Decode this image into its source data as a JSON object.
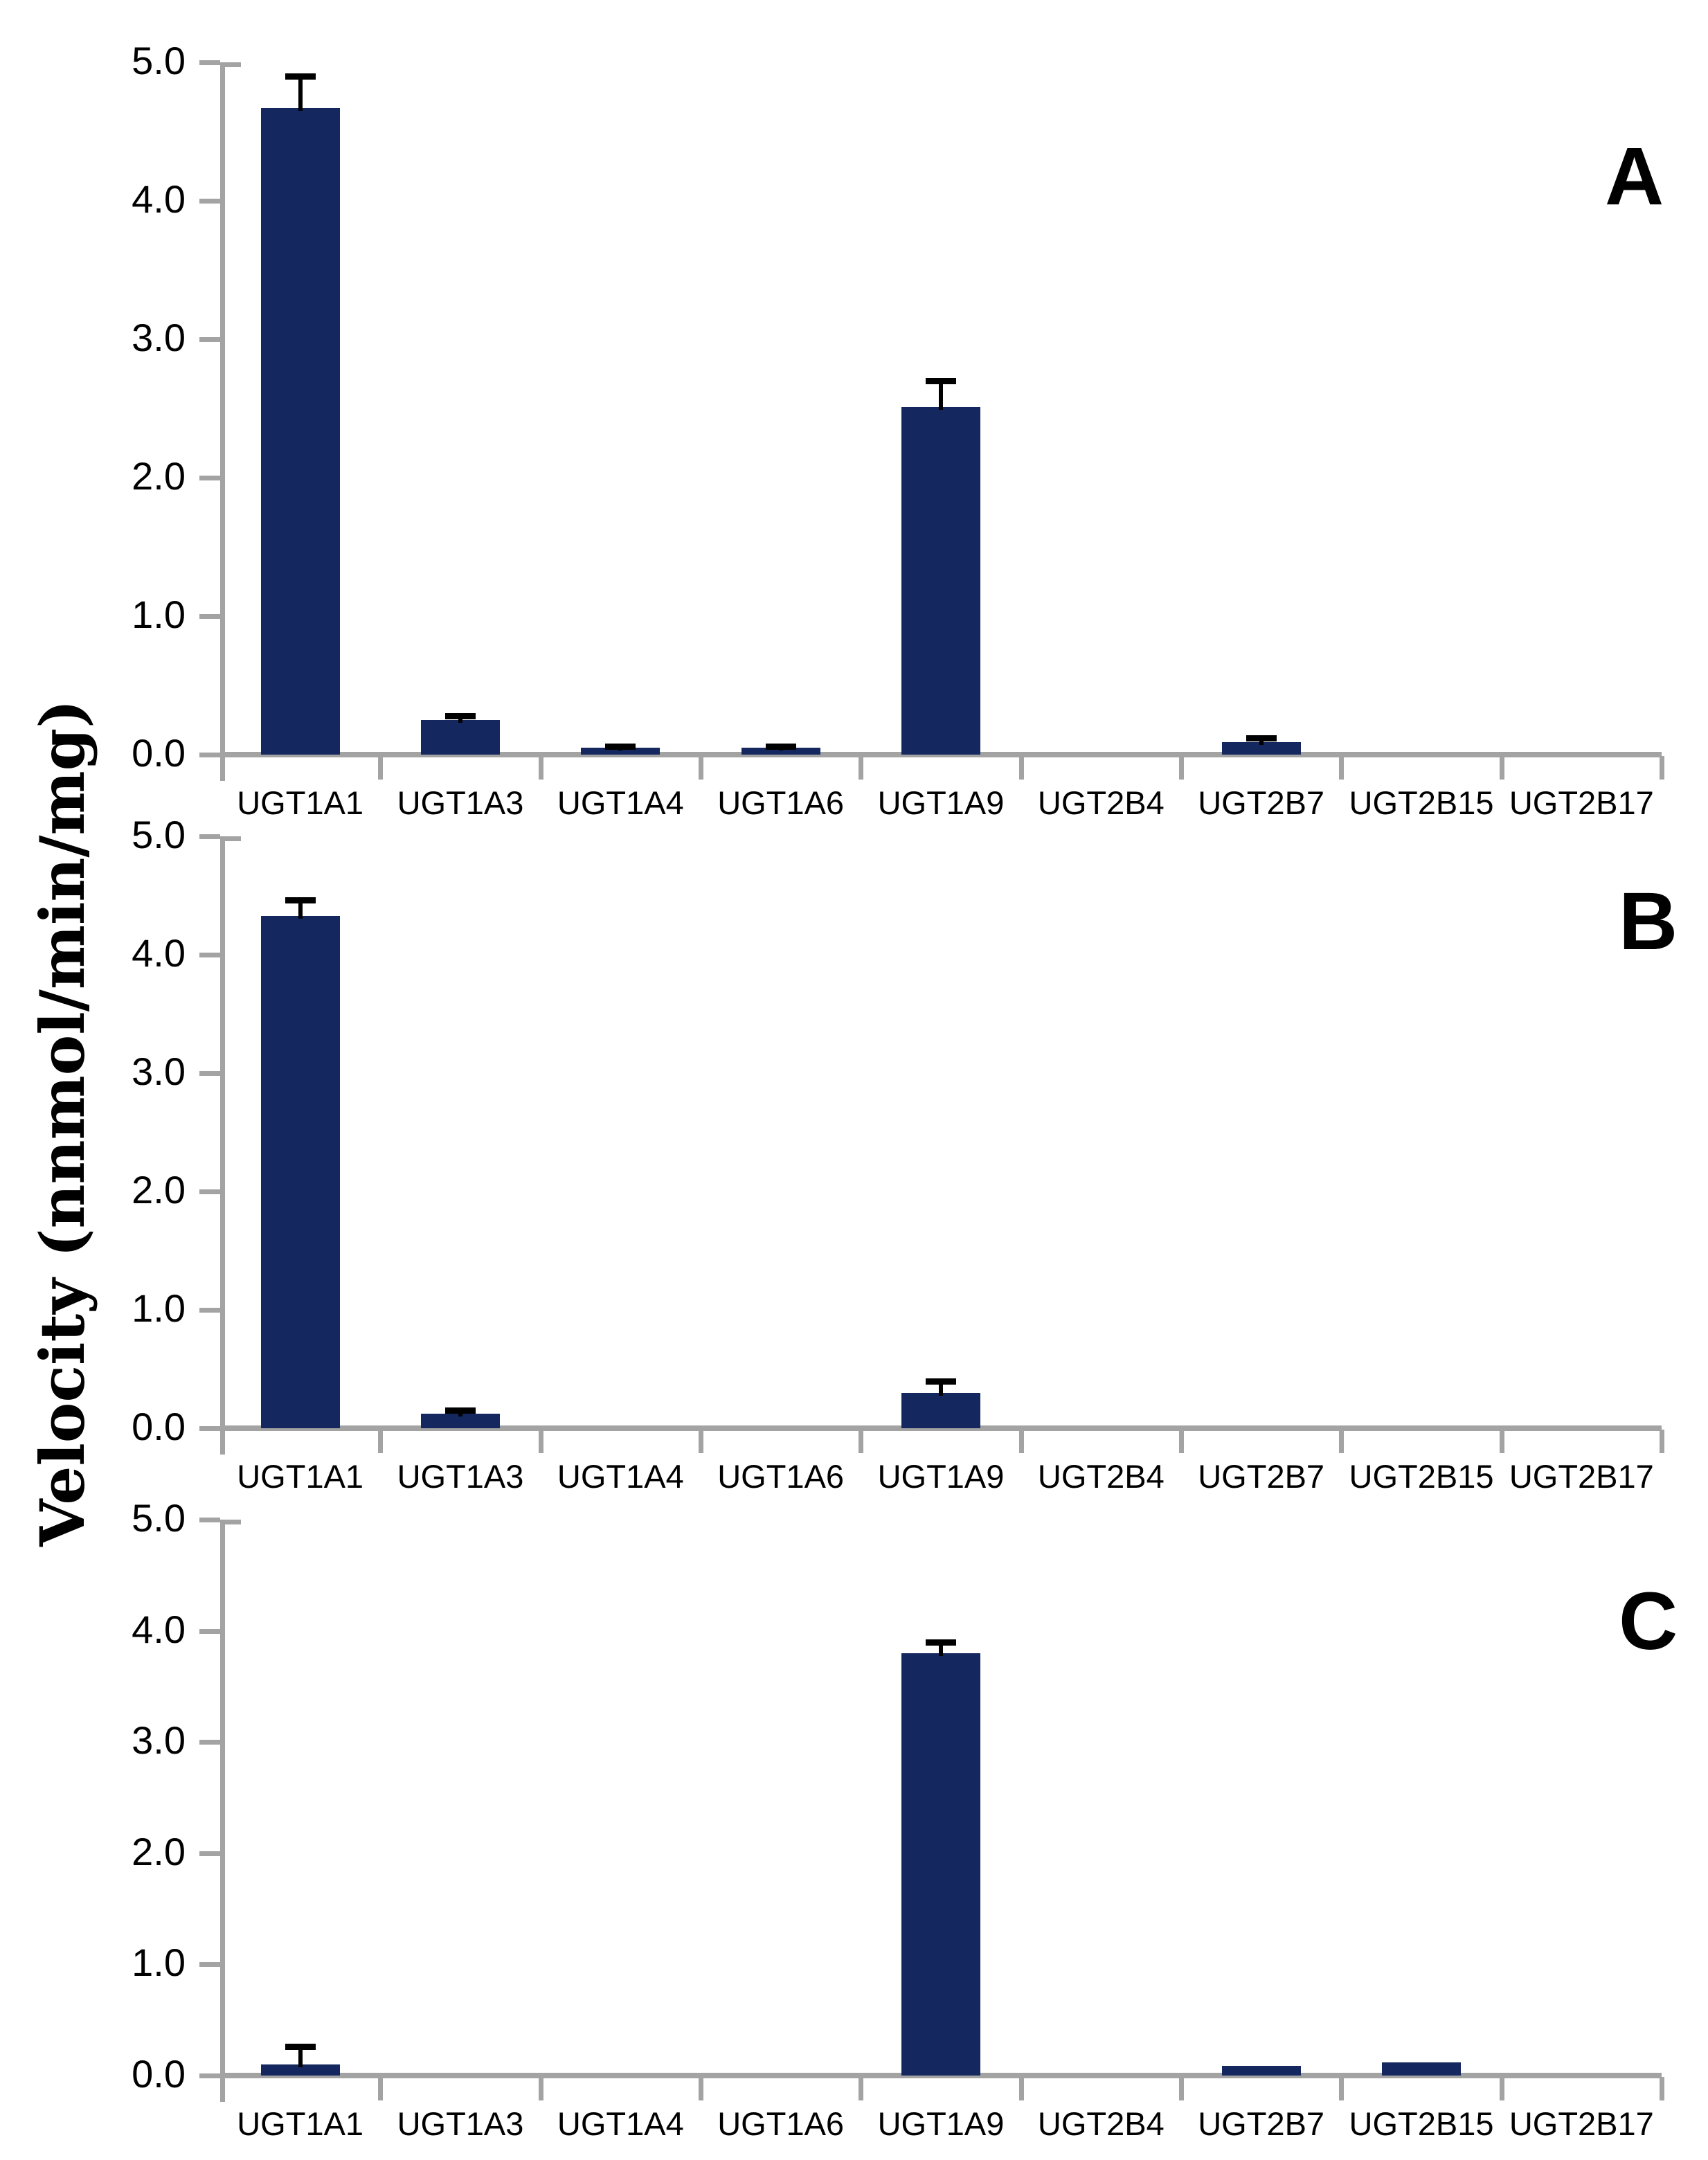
{
  "figure": {
    "ylabel": "Velocity (nnmol/min/mg)"
  },
  "colors": {
    "bar": "#14285f",
    "axis": "#a3a3a3",
    "error": "#000000",
    "text": "#000000"
  },
  "chart_data": [
    {
      "panel": "A",
      "type": "bar",
      "ylim": [
        0,
        5
      ],
      "yticks": [
        "5.0",
        "4.0",
        "3.0",
        "2.0",
        "1.0",
        "0.0"
      ],
      "grid": false,
      "legend": "none",
      "categories": [
        "UGT1A1",
        "UGT1A3",
        "UGT1A4",
        "UGT1A6",
        "UGT1A9",
        "UGT2B4",
        "UGT2B7",
        "UGT2B15",
        "UGT2B17"
      ],
      "values": [
        4.67,
        0.25,
        0.05,
        0.05,
        2.51,
        0,
        0.09,
        0,
        0
      ],
      "errors": [
        0.23,
        0.03,
        0.01,
        0.01,
        0.19,
        0,
        0.03,
        0,
        0
      ]
    },
    {
      "panel": "B",
      "type": "bar",
      "ylim": [
        0,
        5
      ],
      "yticks": [
        "5.0",
        "4.0",
        "3.0",
        "2.0",
        "1.0",
        "0.0"
      ],
      "grid": false,
      "legend": "none",
      "categories": [
        "UGT1A1",
        "UGT1A3",
        "UGT1A4",
        "UGT1A6",
        "UGT1A9",
        "UGT2B4",
        "UGT2B7",
        "UGT2B15",
        "UGT2B17"
      ],
      "values": [
        4.33,
        0.12,
        0,
        0,
        0.3,
        0,
        0,
        0,
        0
      ],
      "errors": [
        0.13,
        0.03,
        0,
        0,
        0.1,
        0,
        0,
        0,
        0
      ]
    },
    {
      "panel": "C",
      "type": "bar",
      "ylim": [
        0,
        5
      ],
      "yticks": [
        "5.0",
        "4.0",
        "3.0",
        "2.0",
        "1.0",
        "0.0"
      ],
      "grid": false,
      "legend": "none",
      "categories": [
        "UGT1A1",
        "UGT1A3",
        "UGT1A4",
        "UGT1A6",
        "UGT1A9",
        "UGT2B4",
        "UGT2B7",
        "UGT2B15",
        "UGT2B17"
      ],
      "values": [
        0.1,
        0,
        0,
        0,
        3.8,
        0,
        0.09,
        0.12,
        0
      ],
      "errors": [
        0.16,
        0,
        0,
        0,
        0.1,
        0,
        0,
        0,
        0
      ]
    }
  ]
}
